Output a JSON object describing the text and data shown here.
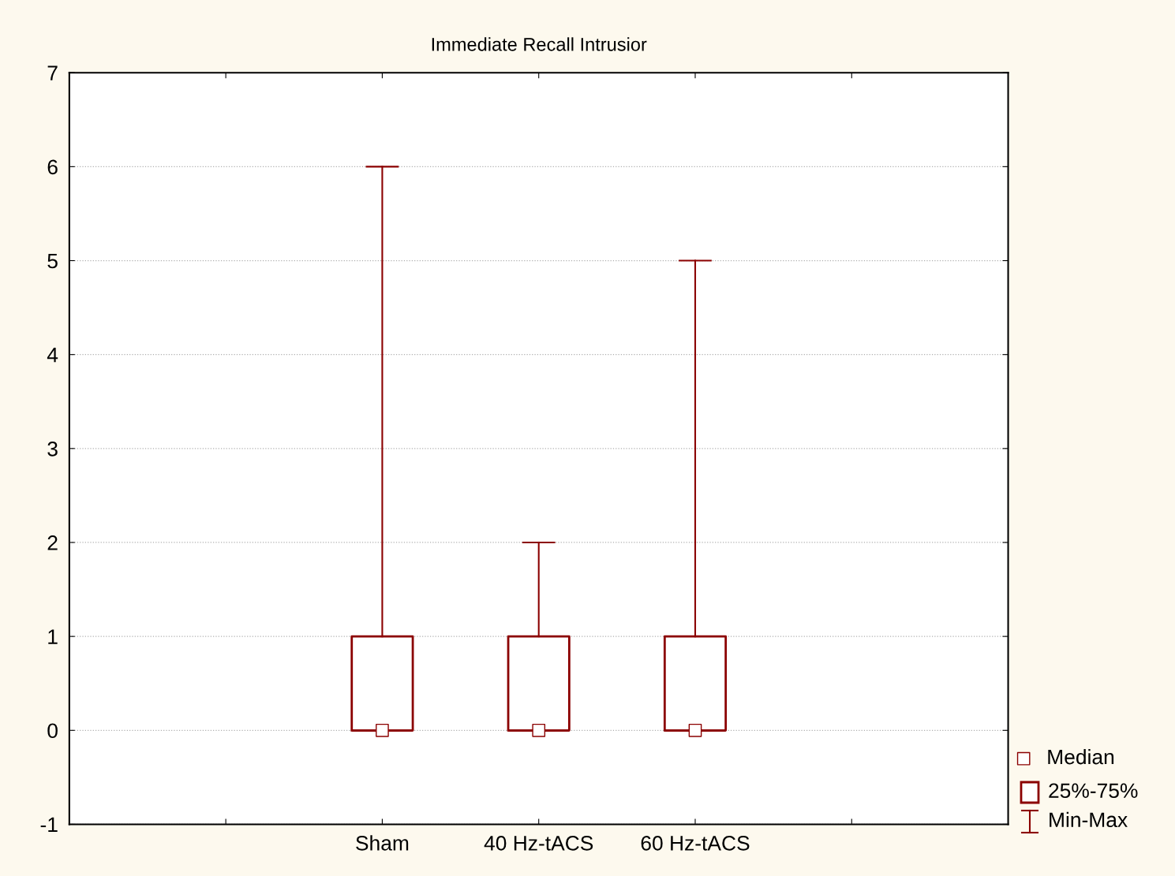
{
  "chart_data": {
    "type": "box",
    "title": "Immediate Recall Intrusior",
    "categories": [
      null,
      "Sham",
      "40 Hz-tACS",
      "60 Hz-tACS",
      null
    ],
    "color": "#8b0000",
    "boxes": [
      null,
      {
        "low": 0,
        "q1": 0,
        "median": 0,
        "q3": 1,
        "high": 6
      },
      {
        "low": 0,
        "q1": 0,
        "median": 0,
        "q3": 1,
        "high": 2
      },
      {
        "low": 0,
        "q1": 0,
        "median": 0,
        "q3": 1,
        "high": 5
      },
      null
    ],
    "series": [
      {
        "type": "scatter",
        "name": "Median",
        "x": [
          "Sham",
          "40 Hz-tACS",
          "60 Hz-tACS"
        ],
        "values": [
          0,
          0,
          0
        ],
        "color": "#ffffff",
        "marker": "square"
      }
    ],
    "ylim": [
      -1,
      7
    ],
    "yticks": [
      -1,
      0,
      1,
      2,
      3,
      4,
      5,
      6,
      7
    ],
    "grid": "y",
    "legend": "bottom right",
    "annotations": [
      "25%-75%",
      "Min-Max"
    ]
  }
}
